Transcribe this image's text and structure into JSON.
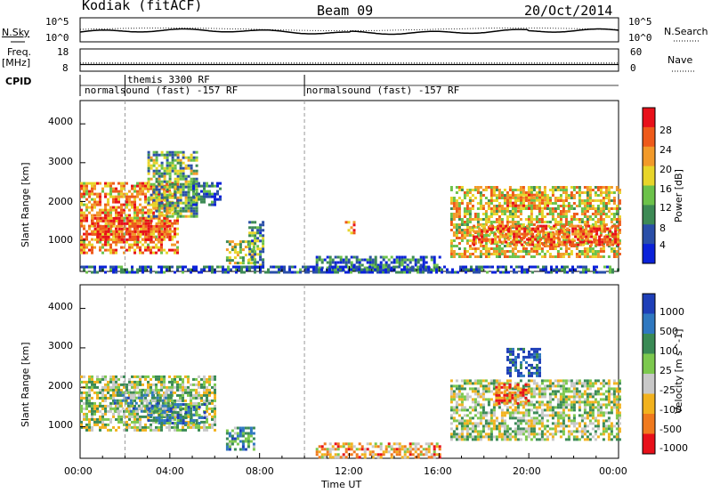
{
  "header": {
    "radar": "Kodiak (fitACF)",
    "beam": "Beam 09",
    "date": "20/Oct/2014"
  },
  "top_panels": {
    "nsky_label": "N.Sky",
    "nsky_ticks": [
      "10^5",
      "10^0"
    ],
    "nsearch_label": "N.Search",
    "nsearch_ticks": [
      "10^5",
      "10^0"
    ],
    "freq_label": "Freq.",
    "freq_unit": "[MHz]",
    "freq_ticks": [
      "18",
      "8"
    ],
    "nave_label": "Nave",
    "nave_ticks": [
      "60",
      "0"
    ],
    "cpid_label": "CPID",
    "cpid_segments": [
      {
        "text": "themis 3300 RF",
        "start_hour": 2.0
      },
      {
        "text": "normalsound (fast) -157 RF",
        "start_hour": 0.0
      },
      {
        "text": "normalsound (fast) -157 RF",
        "start_hour": 10.0
      }
    ],
    "freq_value_mhz": 11,
    "nave_value": 22
  },
  "chart_data": [
    {
      "type": "heatmap",
      "name": "power",
      "ylabel": "Slant Range [km]",
      "yticks": [
        "1000",
        "2000",
        "3000",
        "4000"
      ],
      "ylim": [
        200,
        4600
      ],
      "xlim": [
        0,
        24
      ],
      "colorbar_label": "Power [dB]",
      "colorbar_ticks": [
        "4",
        "8",
        "12",
        "16",
        "20",
        "24",
        "28"
      ],
      "colors": [
        "#0b22d9",
        "#2a4fa8",
        "#3d8a55",
        "#6cc24a",
        "#e8d52a",
        "#f29a2a",
        "#ee5a1a",
        "#e8101a"
      ],
      "regions": [
        {
          "t0": 0.0,
          "t1": 4.4,
          "r0": 700,
          "r1": 2500,
          "level": 0.7
        },
        {
          "t0": 0.5,
          "t1": 4.0,
          "r0": 1000,
          "r1": 1600,
          "level": 0.85
        },
        {
          "t0": 3.0,
          "t1": 5.2,
          "r0": 1600,
          "r1": 3300,
          "level": 0.4
        },
        {
          "t0": 5.0,
          "t1": 6.2,
          "r0": 1900,
          "r1": 2500,
          "level": 0.25
        },
        {
          "t0": 6.5,
          "t1": 7.8,
          "r0": 400,
          "r1": 1000,
          "level": 0.5
        },
        {
          "t0": 7.5,
          "t1": 8.2,
          "r0": 300,
          "r1": 1500,
          "level": 0.35
        },
        {
          "t0": 10.5,
          "t1": 16.0,
          "r0": 250,
          "r1": 600,
          "level": 0.25
        },
        {
          "t0": 11.8,
          "t1": 12.2,
          "r0": 1200,
          "r1": 1500,
          "level": 0.7
        },
        {
          "t0": 16.5,
          "t1": 24.0,
          "r0": 600,
          "r1": 2400,
          "level": 0.6
        },
        {
          "t0": 17.5,
          "t1": 24.0,
          "r0": 900,
          "r1": 1400,
          "level": 0.8
        },
        {
          "t0": 19.0,
          "t1": 21.0,
          "r0": 1800,
          "r1": 2200,
          "level": 0.7
        },
        {
          "t0": 0.0,
          "t1": 24.0,
          "r0": 200,
          "r1": 350,
          "level": 0.15
        }
      ]
    },
    {
      "type": "heatmap",
      "name": "velocity",
      "ylabel": "Slant Range [km]",
      "yticks": [
        "1000",
        "2000",
        "3000",
        "4000"
      ],
      "ylim": [
        200,
        4600
      ],
      "xlim": [
        0,
        24
      ],
      "colorbar_label": "Velocity [m s^-1]",
      "colorbar_ticks": [
        "1000",
        "500",
        "100",
        "25",
        "-25",
        "-100",
        "-500",
        "-1000"
      ],
      "colors": [
        "#1e3fb8",
        "#2f78c0",
        "#3a8a55",
        "#7cc84e",
        "#c8c8c8",
        "#f2b21e",
        "#f07a1e",
        "#e8101a"
      ],
      "regions": [
        {
          "t0": 0.0,
          "t1": 6.0,
          "r0": 900,
          "r1": 2300,
          "level": 0.5
        },
        {
          "t0": 3.0,
          "t1": 5.5,
          "r0": 1100,
          "r1": 1600,
          "level": 0.3
        },
        {
          "t0": 1.5,
          "t1": 4.0,
          "r0": 1400,
          "r1": 1900,
          "level": 0.35
        },
        {
          "t0": 6.5,
          "t1": 7.8,
          "r0": 400,
          "r1": 1000,
          "level": 0.3
        },
        {
          "t0": 10.5,
          "t1": 16.0,
          "r0": 250,
          "r1": 600,
          "level": 0.7
        },
        {
          "t0": 16.5,
          "t1": 24.0,
          "r0": 700,
          "r1": 2200,
          "level": 0.5
        },
        {
          "t0": 18.5,
          "t1": 20.0,
          "r0": 1600,
          "r1": 2100,
          "level": 0.85
        },
        {
          "t0": 19.0,
          "t1": 20.5,
          "r0": 2300,
          "r1": 3000,
          "level": 0.1
        }
      ]
    }
  ],
  "xaxis": {
    "ticks": [
      "00:00",
      "04:00",
      "08:00",
      "12:00",
      "16:00",
      "20:00",
      "00:00"
    ],
    "label": "Time UT"
  },
  "markers": {
    "dashed_hours": [
      2.0,
      10.0
    ]
  }
}
